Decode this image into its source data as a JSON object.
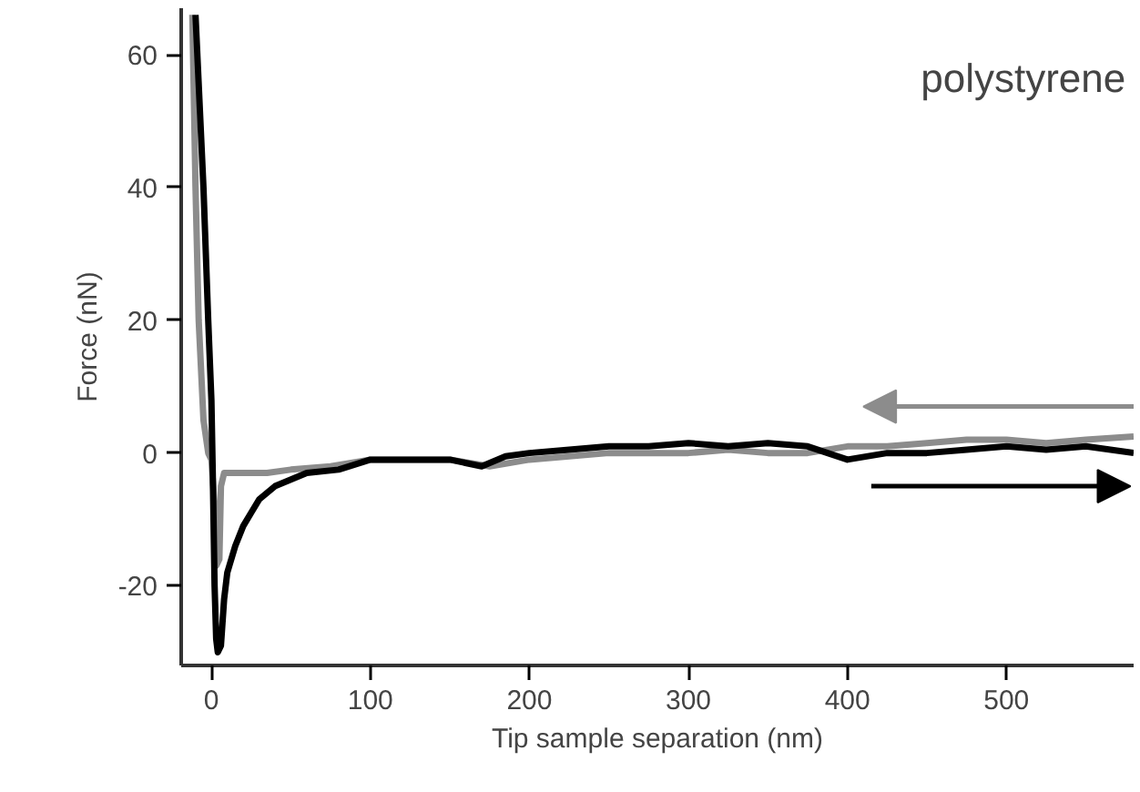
{
  "chart_data": {
    "type": "line",
    "xlabel": "Tip sample separation (nm)",
    "ylabel": "Force (nN)",
    "annotations": [
      "polystyrene"
    ],
    "xlim": [
      -19,
      580
    ],
    "ylim": [
      -32,
      67
    ],
    "xticks": [
      0,
      100,
      200,
      300,
      400,
      500
    ],
    "yticks": [
      -20,
      0,
      20,
      40,
      60
    ],
    "grid": false,
    "series": [
      {
        "color": "#8c8c8c",
        "x": [
          -12,
          -10,
          -8,
          -5,
          -2,
          0,
          2,
          3,
          5,
          6,
          8,
          20,
          35,
          50,
          75,
          100,
          125,
          150,
          175,
          200,
          225,
          250,
          275,
          300,
          325,
          350,
          375,
          400,
          425,
          450,
          475,
          500,
          525,
          550,
          580
        ],
        "values": [
          66,
          40,
          20,
          5,
          0,
          -1,
          -8,
          -17,
          -16,
          -5,
          -3,
          -3,
          -3,
          -2.5,
          -2,
          -1,
          -1,
          -1,
          -2,
          -1,
          -0.5,
          0,
          0,
          0,
          0.5,
          0,
          0,
          1,
          1,
          1.5,
          2,
          2,
          1.5,
          2,
          2.5
        ]
      },
      {
        "color": "#000000",
        "x": [
          -10,
          -5,
          -2,
          0,
          1,
          2,
          3,
          4,
          6,
          8,
          10,
          15,
          20,
          25,
          30,
          40,
          50,
          60,
          80,
          100,
          125,
          150,
          170,
          185,
          200,
          225,
          250,
          275,
          300,
          325,
          350,
          375,
          400,
          425,
          450,
          475,
          500,
          525,
          550,
          580
        ],
        "values": [
          66,
          40,
          20,
          8,
          -5,
          -20,
          -28,
          -30,
          -29,
          -22,
          -18,
          -14,
          -11,
          -9,
          -7,
          -5,
          -4,
          -3,
          -2.5,
          -1,
          -1,
          -1,
          -2,
          -0.5,
          0,
          0.5,
          1,
          1,
          1.5,
          1,
          1.5,
          1,
          -1,
          0,
          0,
          0.5,
          1,
          0.5,
          1,
          0
        ]
      }
    ]
  }
}
